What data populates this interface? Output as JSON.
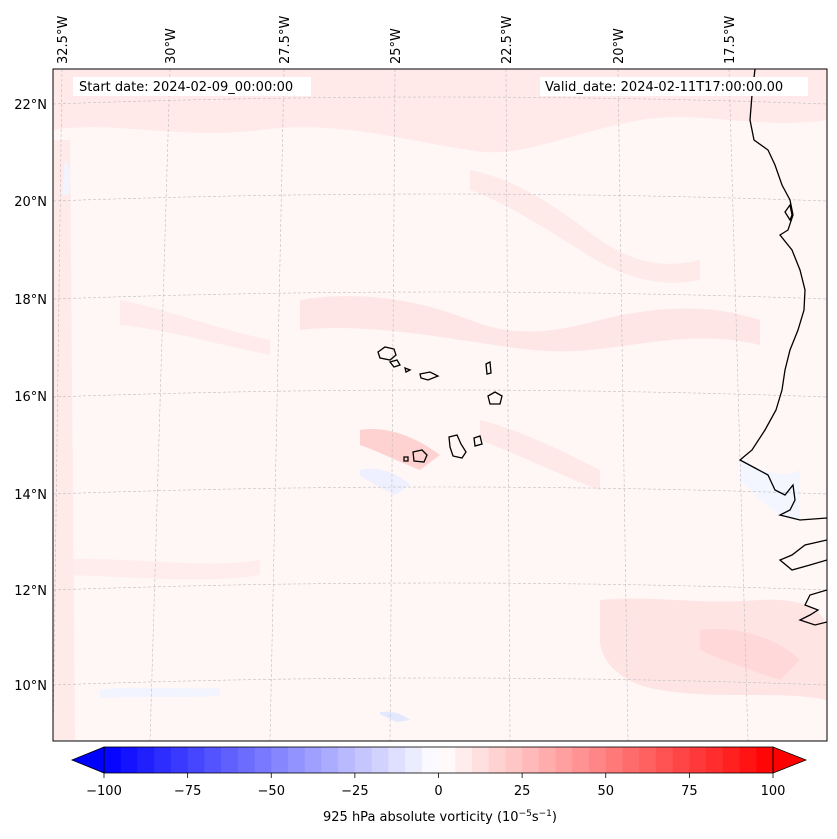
{
  "map": {
    "start_date": "Start date: 2024-02-09_00:00:00",
    "valid_date": "Valid_date: 2024-02-11T17:00:00.00",
    "lon_labels": [
      "32.5°W",
      "30°W",
      "27.5°W",
      "25°W",
      "22.5°W",
      "20°W",
      "17.5°W"
    ],
    "lat_labels": [
      "22°N",
      "20°N",
      "18°N",
      "16°N",
      "14°N",
      "12°N",
      "10°N"
    ]
  },
  "colorbar": {
    "label_main": "925 hPa absolute vorticity (10",
    "label_exp1": "−5",
    "label_mid": "s",
    "label_exp2": "−1",
    "label_end": ")",
    "ticks": [
      "−100",
      "−75",
      "−50",
      "−25",
      "0",
      "25",
      "50",
      "75",
      "100"
    ],
    "min": -100,
    "max": 100,
    "low_color": "#0000ff",
    "high_color": "#ff0000"
  }
}
